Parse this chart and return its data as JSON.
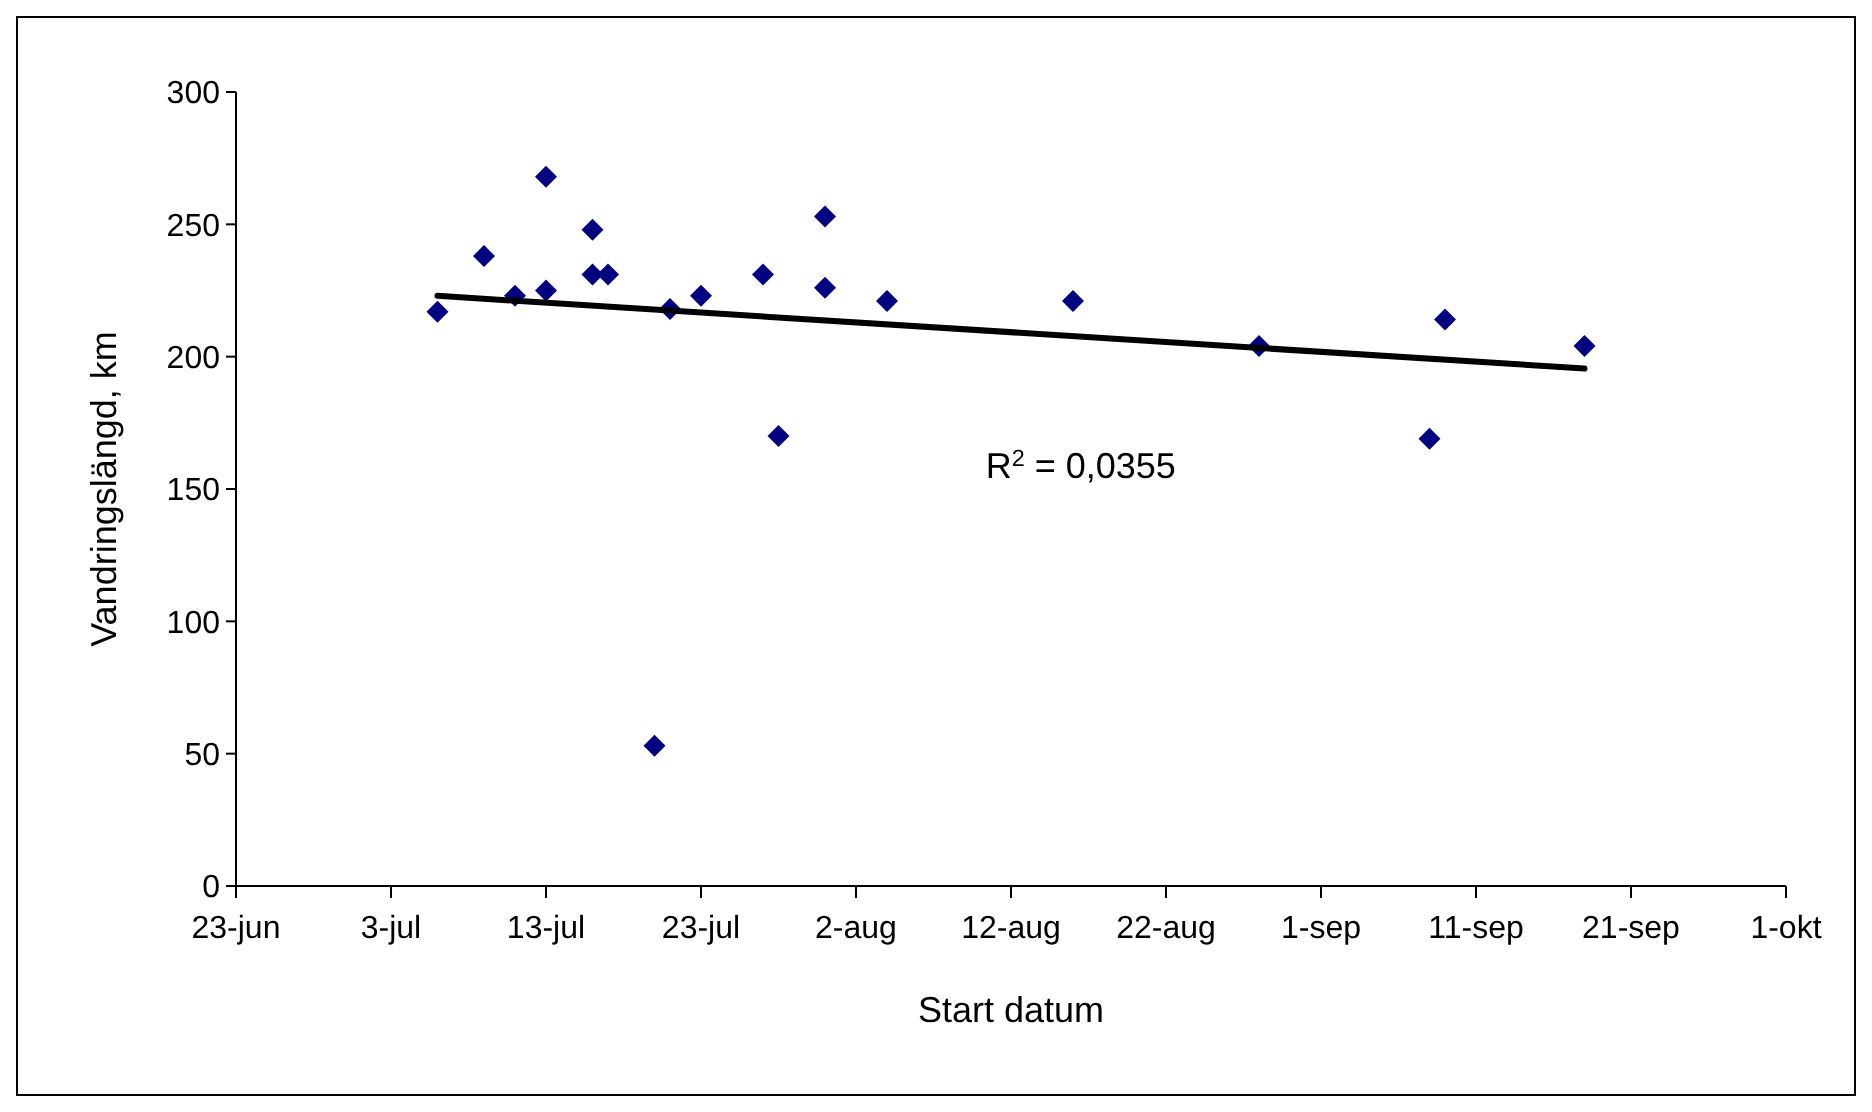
{
  "chart_data": {
    "type": "scatter",
    "xlabel": "Start datum",
    "ylabel": "Vandringslängd, km",
    "xlim": [
      "--06-23",
      "--10-01"
    ],
    "xticks": [
      {
        "value": "--06-23",
        "label": "23-jun"
      },
      {
        "value": "--07-03",
        "label": "3-jul"
      },
      {
        "value": "--07-13",
        "label": "13-jul"
      },
      {
        "value": "--07-23",
        "label": "23-jul"
      },
      {
        "value": "--08-02",
        "label": "2-aug"
      },
      {
        "value": "--08-12",
        "label": "12-aug"
      },
      {
        "value": "--08-22",
        "label": "22-aug"
      },
      {
        "value": "--09-01",
        "label": "1-sep"
      },
      {
        "value": "--09-11",
        "label": "11-sep"
      },
      {
        "value": "--09-21",
        "label": "21-sep"
      },
      {
        "value": "--10-01",
        "label": "1-okt"
      }
    ],
    "ylim": [
      0,
      300
    ],
    "yticks": [
      0,
      50,
      100,
      150,
      200,
      250,
      300
    ],
    "grid": false,
    "marker": "diamond",
    "series": [
      {
        "color": "#000080",
        "x": [
          "--07-06",
          "--07-09",
          "--07-11",
          "--07-13",
          "--07-13",
          "--07-16",
          "--07-16",
          "--07-17",
          "--07-20",
          "--07-21",
          "--07-23",
          "--07-27",
          "--07-28",
          "--07-31",
          "--07-31",
          "--08-04",
          "--08-16",
          "--08-28",
          "--09-08",
          "--09-09",
          "--09-18"
        ],
        "values": [
          217,
          238,
          223,
          268,
          225,
          248,
          231,
          231,
          53,
          218,
          223,
          231,
          170,
          253,
          226,
          221,
          221,
          204,
          169,
          214,
          204
        ]
      },
      {
        "type": "line",
        "color": "#000000",
        "marker": "none",
        "line_style": "solid",
        "x": [
          "--07-06",
          "--09-18"
        ],
        "values": [
          223,
          195.5
        ]
      }
    ],
    "annotations": [
      "R$^{2}$ = 0,0355"
    ]
  }
}
